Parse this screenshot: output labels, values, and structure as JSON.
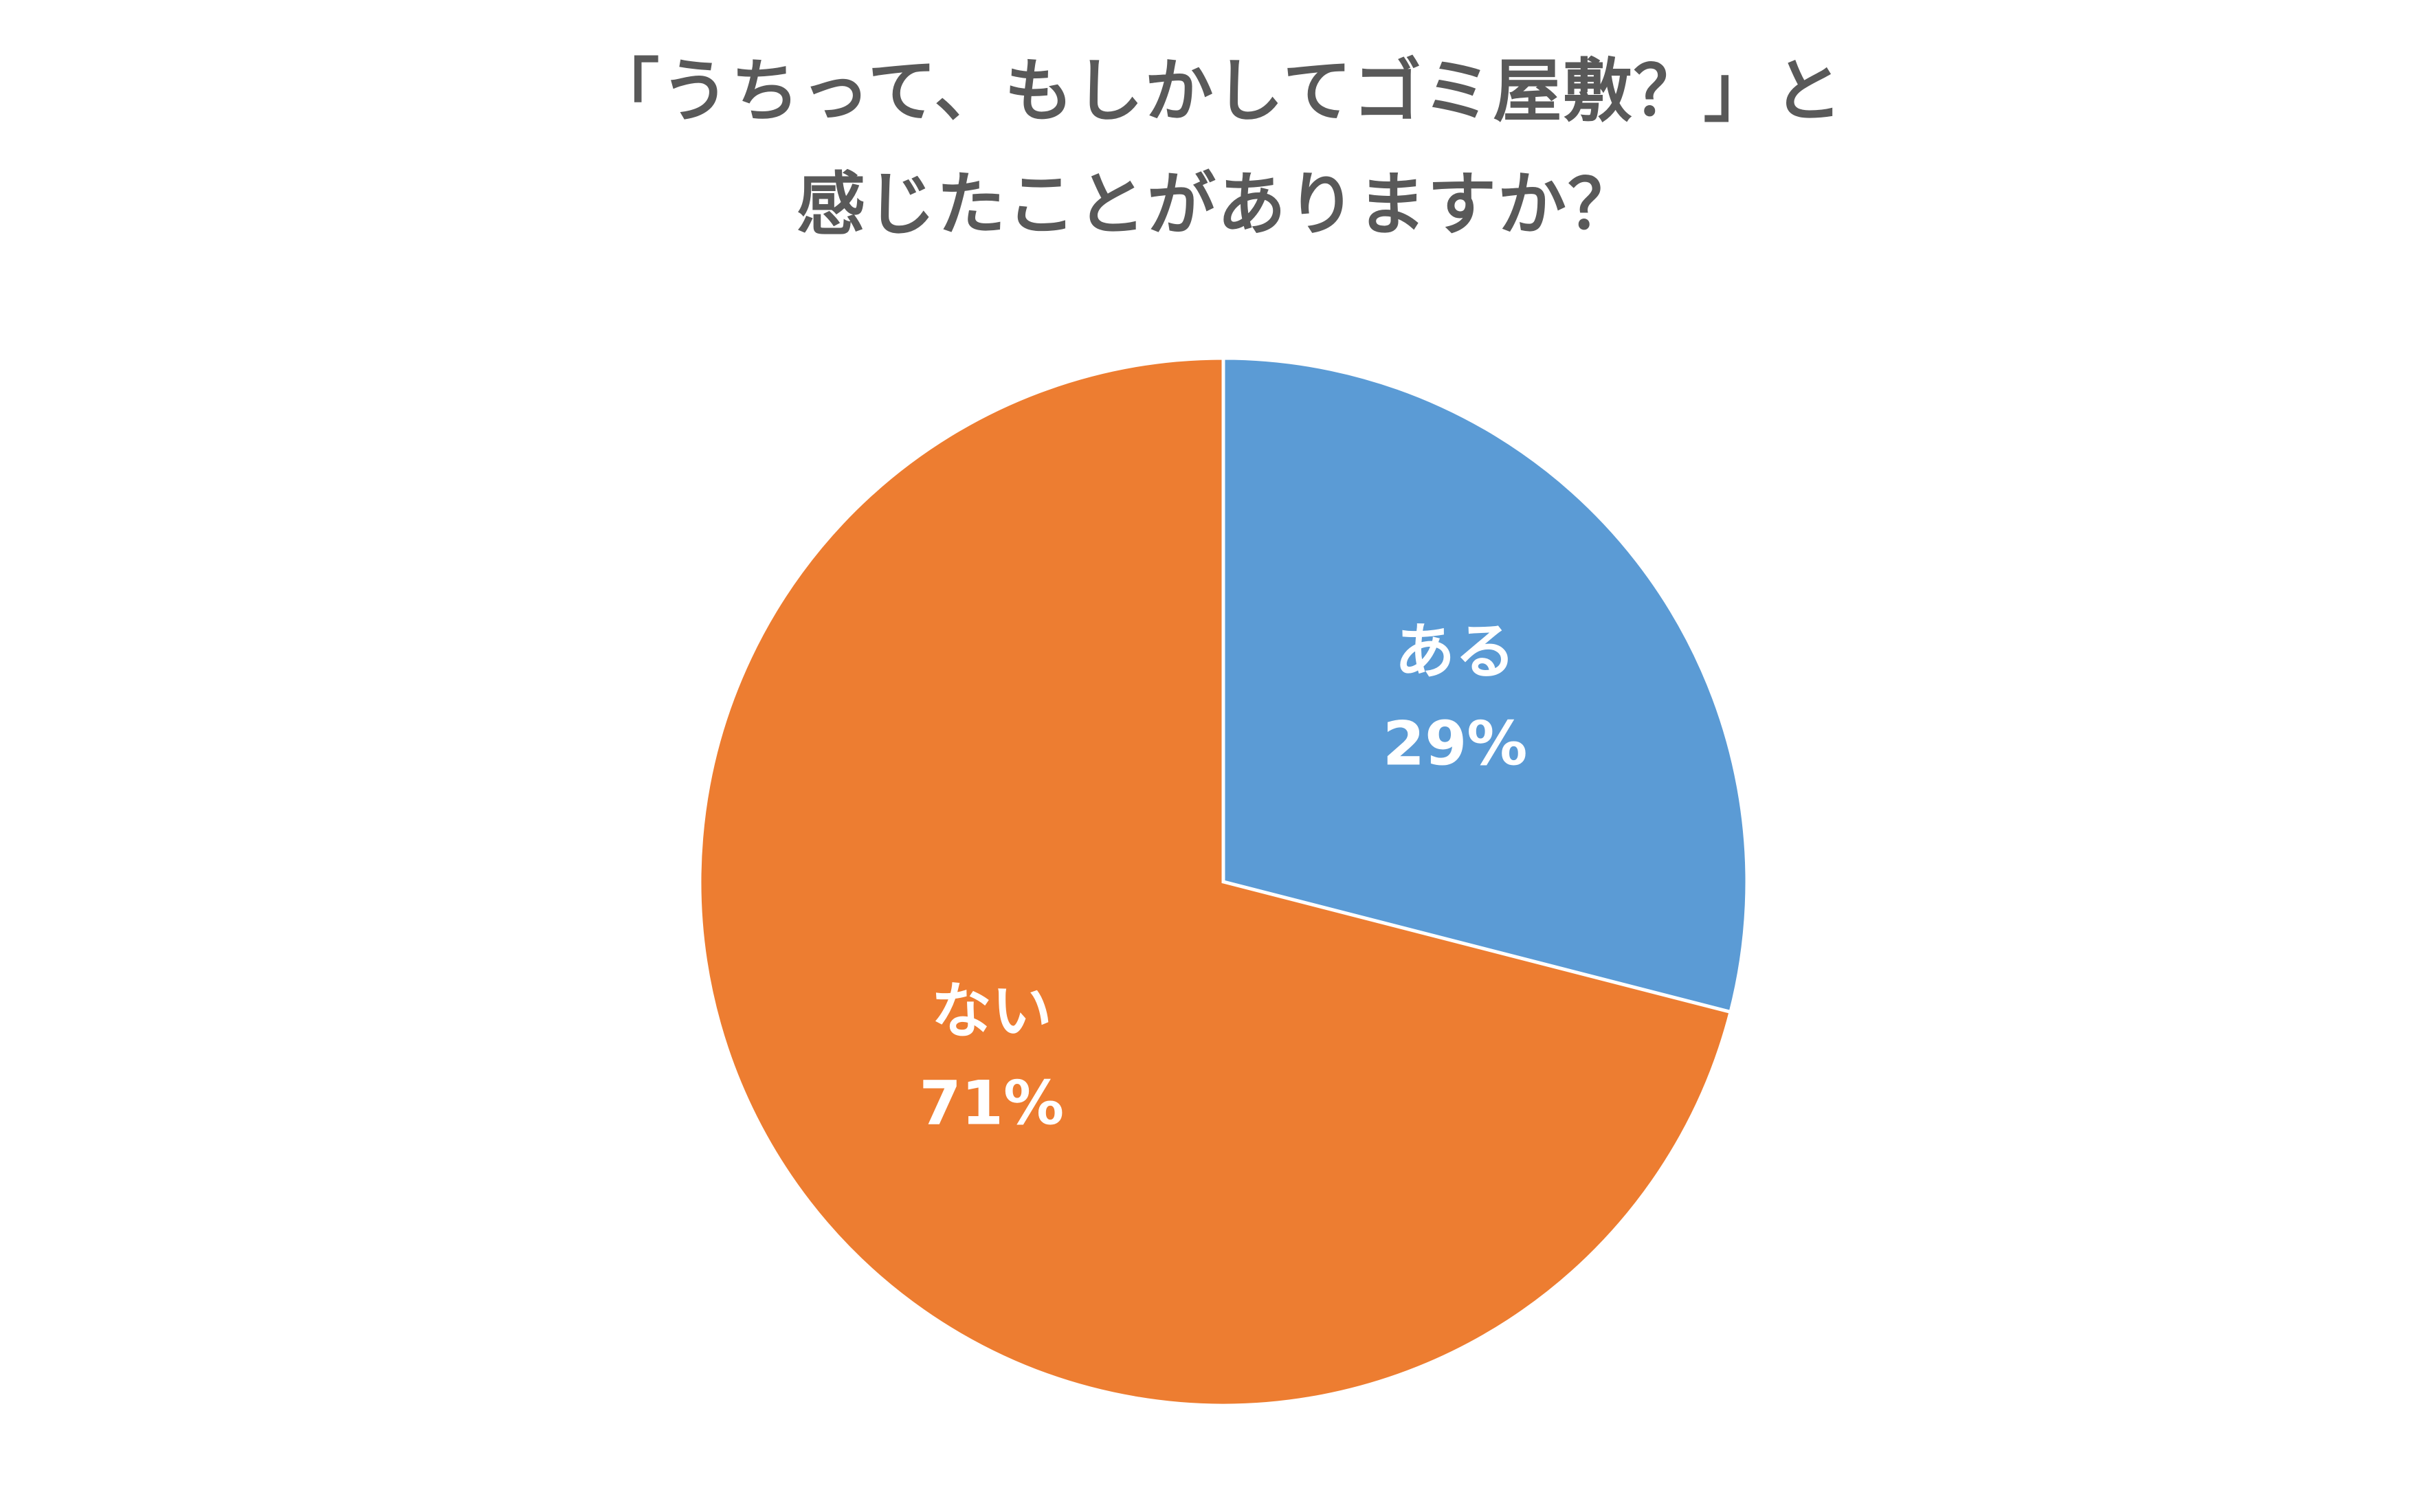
{
  "chart_data": {
    "type": "pie",
    "title": "「うちって、もしかしてゴミ屋敷？」と感じたことがありますか？",
    "categories": [
      "ある",
      "ない"
    ],
    "values": [
      29,
      71
    ],
    "value_labels": [
      "29%",
      "71%"
    ],
    "colors": [
      "#5b9bd5",
      "#ed7d31"
    ]
  }
}
